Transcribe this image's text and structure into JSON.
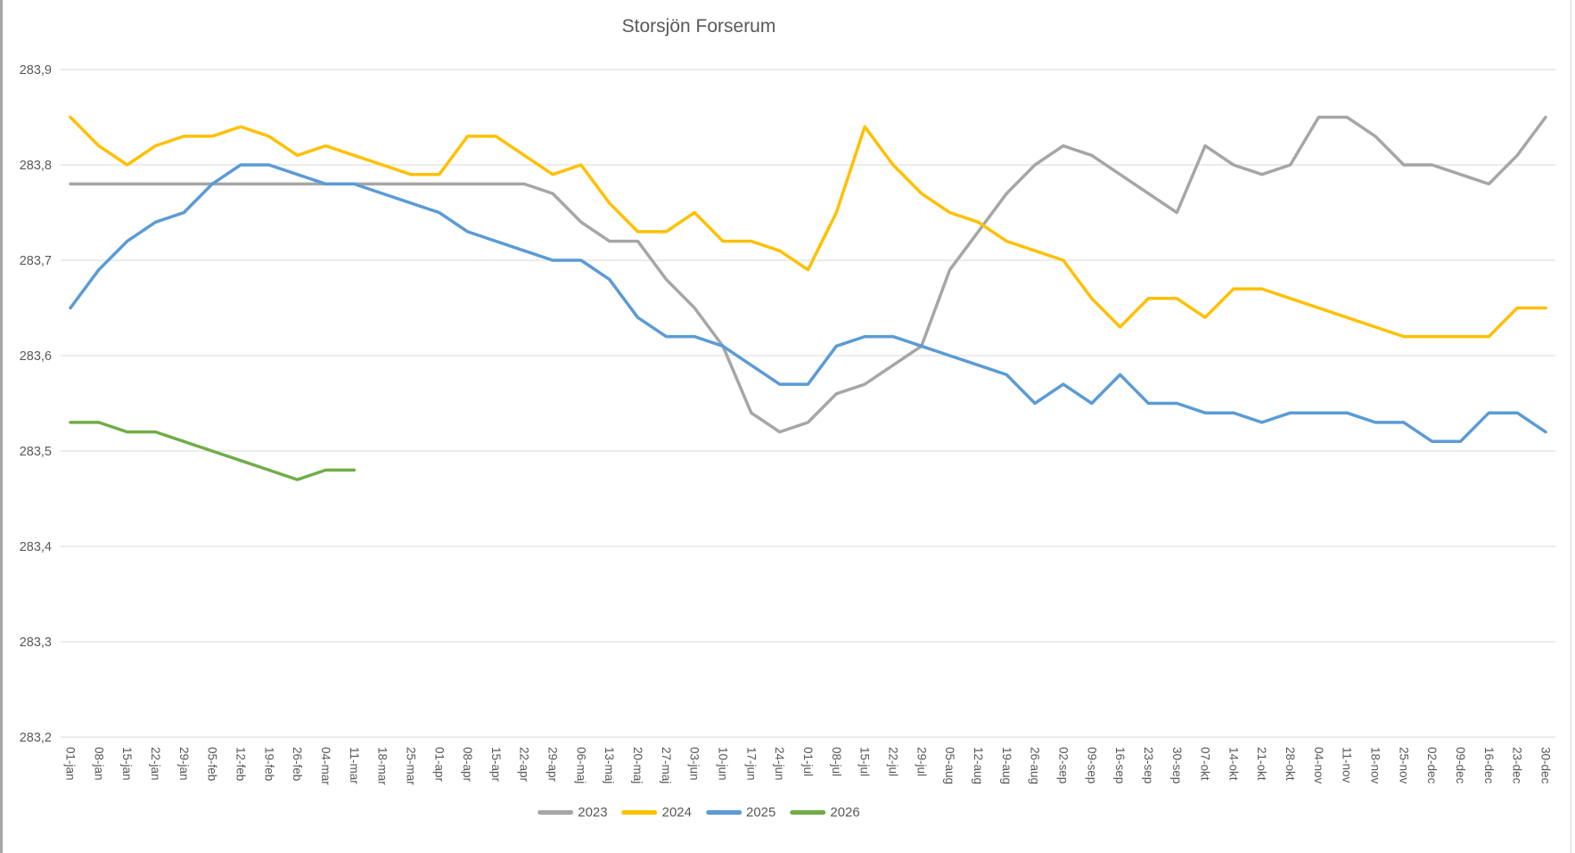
{
  "title": "Storsjön Forserum",
  "chart_data": {
    "type": "line",
    "title": "Storsjön Forserum",
    "x_labels": [
      "01-jan",
      "08-jan",
      "15-jan",
      "22-jan",
      "29-jan",
      "05-feb",
      "12-feb",
      "19-feb",
      "26-feb",
      "04-mar",
      "11-mar",
      "18-mar",
      "25-mar",
      "01-apr",
      "08-apr",
      "15-apr",
      "22-apr",
      "29-apr",
      "06-maj",
      "13-maj",
      "20-maj",
      "27-maj",
      "03-jun",
      "10-jun",
      "17-jun",
      "24-jun",
      "01-jul",
      "08-jul",
      "15-jul",
      "22-jul",
      "29-jul",
      "05-aug",
      "12-aug",
      "19-aug",
      "26-aug",
      "02-sep",
      "09-sep",
      "16-sep",
      "23-sep",
      "30-sep",
      "07-okt",
      "14-okt",
      "21-okt",
      "28-okt",
      "04-nov",
      "11-nov",
      "18-nov",
      "25-nov",
      "02-dec",
      "09-dec",
      "16-dec",
      "23-dec",
      "30-dec"
    ],
    "series": [
      {
        "name": "2023",
        "color": "#A6A6A6",
        "values": [
          283.78,
          283.78,
          283.78,
          283.78,
          283.78,
          283.78,
          283.78,
          283.78,
          283.78,
          283.78,
          283.78,
          283.78,
          283.78,
          283.78,
          283.78,
          283.78,
          283.78,
          283.77,
          283.74,
          283.72,
          283.72,
          283.68,
          283.65,
          283.61,
          283.54,
          283.52,
          283.53,
          283.56,
          283.57,
          283.59,
          283.61,
          283.69,
          283.73,
          283.77,
          283.8,
          283.82,
          283.81,
          283.79,
          283.77,
          283.75,
          283.82,
          283.8,
          283.79,
          283.8,
          283.85,
          283.85,
          283.83,
          283.8,
          283.8,
          283.79,
          283.78,
          283.81,
          283.85
        ]
      },
      {
        "name": "2024",
        "color": "#FFC000",
        "values": [
          283.85,
          283.82,
          283.8,
          283.82,
          283.83,
          283.83,
          283.84,
          283.83,
          283.81,
          283.82,
          283.81,
          283.8,
          283.79,
          283.79,
          283.83,
          283.83,
          283.81,
          283.79,
          283.8,
          283.76,
          283.73,
          283.73,
          283.75,
          283.72,
          283.72,
          283.71,
          283.69,
          283.75,
          283.84,
          283.8,
          283.77,
          283.75,
          283.74,
          283.72,
          283.71,
          283.7,
          283.66,
          283.63,
          283.66,
          283.66,
          283.64,
          283.67,
          283.67,
          283.66,
          283.65,
          283.64,
          283.63,
          283.62,
          283.62,
          283.62,
          283.62,
          283.65,
          283.65
        ]
      },
      {
        "name": "2025",
        "color": "#5B9BD5",
        "values": [
          283.65,
          283.69,
          283.72,
          283.74,
          283.75,
          283.78,
          283.8,
          283.8,
          283.79,
          283.78,
          283.78,
          283.77,
          283.76,
          283.75,
          283.73,
          283.72,
          283.71,
          283.7,
          283.7,
          283.68,
          283.64,
          283.62,
          283.62,
          283.61,
          283.59,
          283.57,
          283.57,
          283.61,
          283.62,
          283.62,
          283.61,
          283.6,
          283.59,
          283.58,
          283.55,
          283.57,
          283.55,
          283.58,
          283.55,
          283.55,
          283.54,
          283.54,
          283.53,
          283.54,
          283.54,
          283.54,
          283.53,
          283.53,
          283.51,
          283.51,
          283.54,
          283.54,
          283.52
        ]
      },
      {
        "name": "2026",
        "color": "#70AD47",
        "values": [
          283.53,
          283.53,
          283.52,
          283.52,
          283.51,
          283.5,
          283.49,
          283.48,
          283.47,
          283.48,
          283.48
        ]
      }
    ],
    "ylim": [
      283.2,
      283.9
    ],
    "ytick_step": 0.1,
    "ytick_labels": [
      "283,2",
      "283,3",
      "283,4",
      "283,5",
      "283,6",
      "283,7",
      "283,8",
      "283,9"
    ],
    "decimal_separator": ",",
    "grid": true,
    "x_label_rotation": 90,
    "legend_position": "bottom"
  }
}
